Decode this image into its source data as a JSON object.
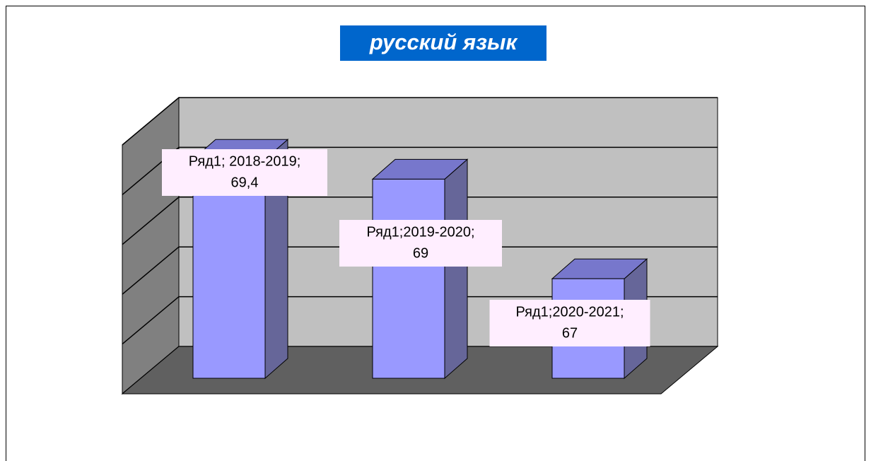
{
  "chart_data": {
    "type": "bar3d",
    "title": "русский язык",
    "categories": [
      "2018-2019",
      "2019-2020",
      "2020-2021"
    ],
    "values": [
      69.4,
      69,
      67
    ],
    "value_labels": [
      "69,4",
      "69",
      "67"
    ],
    "point_labels": [
      "Ряд1; 2018-2019;",
      "Ряд1;2019-2020;",
      "Ряд1;2020-2021;"
    ],
    "color": "#9999ff",
    "ylim": [
      65,
      70
    ],
    "yticks": [
      65,
      66,
      67,
      68,
      69,
      70
    ],
    "grid": true
  }
}
